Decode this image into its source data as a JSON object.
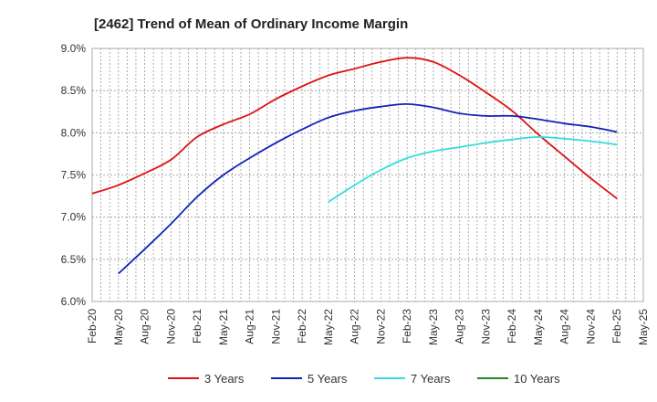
{
  "chart_data": {
    "type": "line",
    "title": "[2462]  Trend of Mean of Ordinary Income Margin",
    "xlabel": "",
    "ylabel": "",
    "x_ticks": [
      "Feb-20",
      "May-20",
      "Aug-20",
      "Nov-20",
      "Feb-21",
      "May-21",
      "Aug-21",
      "Nov-21",
      "Feb-22",
      "May-22",
      "Aug-22",
      "Nov-22",
      "Feb-23",
      "May-23",
      "Aug-23",
      "Nov-23",
      "Feb-24",
      "May-24",
      "Aug-24",
      "Nov-24",
      "Feb-25",
      "May-25"
    ],
    "y_ticks": [
      "6.0%",
      "6.5%",
      "7.0%",
      "7.5%",
      "8.0%",
      "8.5%",
      "9.0%"
    ],
    "ylim": [
      6.0,
      9.0
    ],
    "grid": true,
    "legend_position": "bottom",
    "series": [
      {
        "name": "3 Years",
        "color": "#dd1111",
        "points": [
          [
            "Feb-20",
            7.28
          ],
          [
            "May-20",
            7.38
          ],
          [
            "Aug-20",
            7.52
          ],
          [
            "Nov-20",
            7.68
          ],
          [
            "Feb-21",
            7.95
          ],
          [
            "May-21",
            8.1
          ],
          [
            "Aug-21",
            8.22
          ],
          [
            "Nov-21",
            8.4
          ],
          [
            "Feb-22",
            8.55
          ],
          [
            "May-22",
            8.68
          ],
          [
            "Aug-22",
            8.76
          ],
          [
            "Nov-22",
            8.84
          ],
          [
            "Feb-23",
            8.89
          ],
          [
            "May-23",
            8.84
          ],
          [
            "Aug-23",
            8.68
          ],
          [
            "Nov-23",
            8.48
          ],
          [
            "Feb-24",
            8.26
          ],
          [
            "May-24",
            7.98
          ],
          [
            "Aug-24",
            7.72
          ],
          [
            "Nov-24",
            7.46
          ],
          [
            "Feb-25",
            7.22
          ]
        ]
      },
      {
        "name": "5 Years",
        "color": "#1122bb",
        "points": [
          [
            "May-20",
            6.33
          ],
          [
            "Aug-20",
            6.62
          ],
          [
            "Nov-20",
            6.92
          ],
          [
            "Feb-21",
            7.24
          ],
          [
            "May-21",
            7.5
          ],
          [
            "Aug-21",
            7.7
          ],
          [
            "Nov-21",
            7.88
          ],
          [
            "Feb-22",
            8.04
          ],
          [
            "May-22",
            8.18
          ],
          [
            "Aug-22",
            8.26
          ],
          [
            "Nov-22",
            8.31
          ],
          [
            "Feb-23",
            8.34
          ],
          [
            "May-23",
            8.3
          ],
          [
            "Aug-23",
            8.23
          ],
          [
            "Nov-23",
            8.2
          ],
          [
            "Feb-24",
            8.2
          ],
          [
            "May-24",
            8.16
          ],
          [
            "Aug-24",
            8.11
          ],
          [
            "Nov-24",
            8.07
          ],
          [
            "Feb-25",
            8.01
          ]
        ]
      },
      {
        "name": "7 Years",
        "color": "#33dddd",
        "points": [
          [
            "May-22",
            7.18
          ],
          [
            "Aug-22",
            7.38
          ],
          [
            "Nov-22",
            7.56
          ],
          [
            "Feb-23",
            7.7
          ],
          [
            "May-23",
            7.78
          ],
          [
            "Aug-23",
            7.83
          ],
          [
            "Nov-23",
            7.88
          ],
          [
            "Feb-24",
            7.92
          ],
          [
            "May-24",
            7.95
          ],
          [
            "Aug-24",
            7.93
          ],
          [
            "Nov-24",
            7.9
          ],
          [
            "Feb-25",
            7.86
          ]
        ]
      },
      {
        "name": "10 Years",
        "color": "#228822",
        "points": []
      }
    ]
  }
}
